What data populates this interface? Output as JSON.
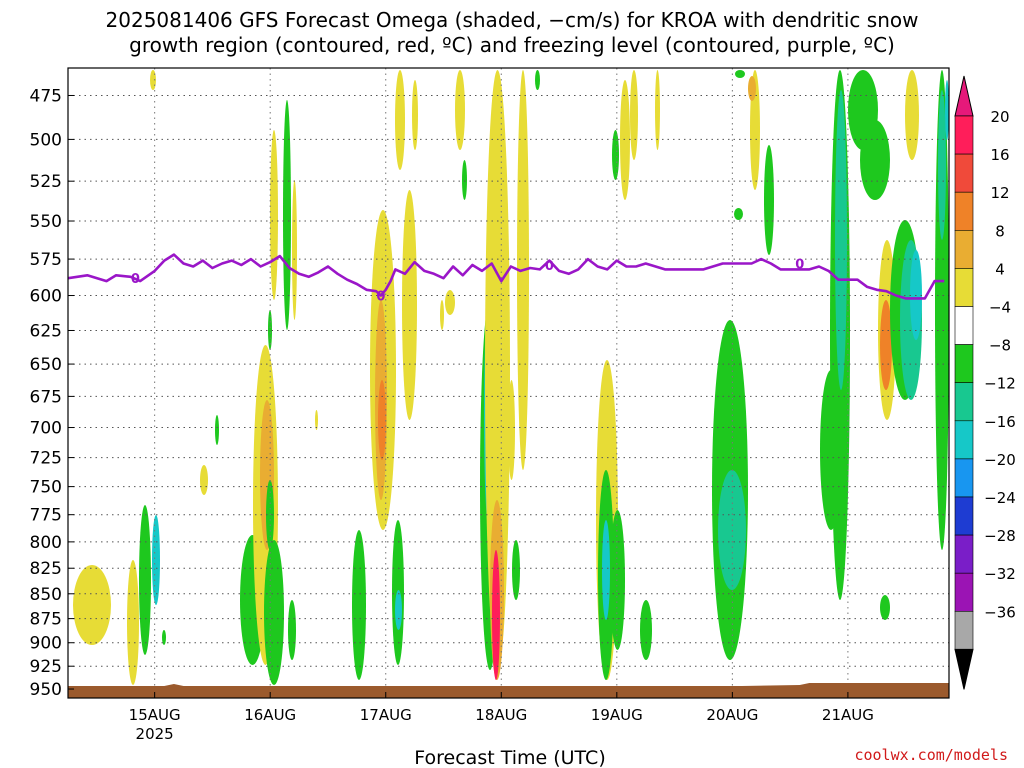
{
  "title_line1": "2025081406 GFS Forecast Omega (shaded, −cm/s) for KROA with dendritic snow",
  "title_line2": "growth region (contoured, red, ºC) and freezing level (contoured, purple, ºC)",
  "credit": "coolwx.com/models",
  "chart_data": {
    "type": "heatmap",
    "title": "2025081406 GFS Forecast Omega (shaded, −cm/s) for KROA with dendritic snow growth region (contoured, red, ºC) and freezing level (contoured, purple, ºC)",
    "xlabel": "Forecast Time (UTC)",
    "ylabel": "",
    "x_range_hours": [
      0,
      183
    ],
    "x_ticks": [
      {
        "label": "15AUG",
        "hour": 18,
        "sub": "2025"
      },
      {
        "label": "16AUG",
        "hour": 42
      },
      {
        "label": "17AUG",
        "hour": 66
      },
      {
        "label": "18AUG",
        "hour": 90
      },
      {
        "label": "19AUG",
        "hour": 114
      },
      {
        "label": "20AUG",
        "hour": 138
      },
      {
        "label": "21AUG",
        "hour": 162
      }
    ],
    "y_range_hpa": [
      460,
      960
    ],
    "y_scale": "log-pressure",
    "y_ticks": [
      475,
      500,
      525,
      550,
      575,
      600,
      625,
      650,
      675,
      700,
      725,
      750,
      775,
      800,
      825,
      850,
      875,
      900,
      925,
      950
    ],
    "grid": true,
    "colorbar": {
      "labels": [
        "20",
        "16",
        "12",
        "8",
        "4",
        "−4",
        "−8",
        "−12",
        "−16",
        "−20",
        "−24",
        "−28",
        "−32",
        "−36"
      ],
      "colors": [
        "#ff1e5a",
        "#f04a3a",
        "#ef8228",
        "#e9ad32",
        "#e7dc36",
        "#ffffff",
        "#1ec81e",
        "#18c890",
        "#16c8c8",
        "#1896f0",
        "#1e3cd2",
        "#7a1ec8",
        "#9b14b4",
        "#a8a8a8"
      ],
      "top_color": "#e6197a",
      "bottom_color": "#000000"
    },
    "freezing_level": {
      "hours": [
        0,
        4,
        8,
        10,
        13,
        15,
        18,
        20,
        22,
        24,
        26,
        28,
        30,
        32,
        34,
        36,
        38,
        40,
        42,
        44,
        46,
        48,
        50,
        52,
        54,
        56,
        58,
        60,
        62,
        64,
        65,
        66,
        67,
        68,
        70,
        72,
        74,
        76,
        78,
        80,
        82,
        84,
        86,
        88,
        90,
        92,
        94,
        96,
        98,
        100,
        102,
        104,
        106,
        108,
        110,
        112,
        114,
        116,
        118,
        120,
        124,
        128,
        132,
        136,
        140,
        142,
        144,
        146,
        148,
        150,
        152,
        154,
        156,
        158,
        160,
        162,
        164,
        166,
        168,
        170,
        172,
        174,
        176,
        178,
        180,
        182
      ],
      "hpa": [
        588,
        586,
        590,
        586,
        587,
        590,
        583,
        576,
        572,
        578,
        580,
        576,
        581,
        578,
        576,
        579,
        575,
        580,
        577,
        573,
        581,
        585,
        587,
        584,
        580,
        585,
        589,
        592,
        596,
        597,
        600,
        596,
        590,
        582,
        585,
        577,
        583,
        585,
        588,
        580,
        586,
        579,
        583,
        578,
        590,
        580,
        583,
        581,
        582,
        576,
        583,
        585,
        582,
        575,
        580,
        582,
        576,
        580,
        580,
        578,
        582,
        582,
        582,
        578,
        578,
        578,
        575,
        578,
        582,
        582,
        582,
        582,
        580,
        583,
        589,
        589,
        589,
        594,
        596,
        597,
        600,
        602,
        602,
        602,
        590,
        590
      ]
    },
    "ground_band_color": "#9b5a2d"
  }
}
